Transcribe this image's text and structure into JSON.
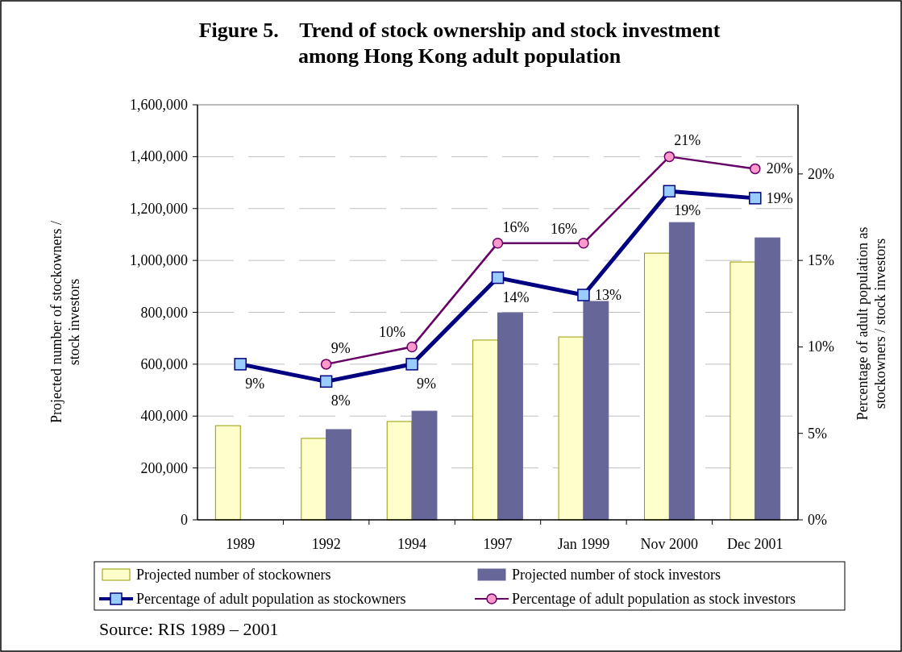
{
  "chart_data": {
    "type": "bar",
    "title": "Figure 5.    Trend of stock ownership and stock investment\namong Hong Kong adult population",
    "ylabel": "Projected number of stockowners /\nstock investors",
    "y2label": "Percentage of adult population as\nstockowners / stock investors",
    "categories": [
      "1989",
      "1992",
      "1994",
      "1997",
      "Jan 1999",
      "Nov 2000",
      "Dec 2001"
    ],
    "series": [
      {
        "name": "Projected number of stockowners",
        "color": "#ffffcc",
        "values": [
          363000,
          314000,
          379000,
          693000,
          705000,
          1028000,
          994000
        ]
      },
      {
        "name": "Projected number of stock investors",
        "color": "#666699",
        "values": [
          null,
          348000,
          419000,
          798000,
          842000,
          1146000,
          1087000
        ]
      },
      {
        "name": "Percentage of adult population as stockowners",
        "type": "line",
        "axis": "y2",
        "color": "#000080",
        "marker": "square",
        "values": [
          9.0,
          8.0,
          9.0,
          14.0,
          13.0,
          19.0,
          18.6
        ],
        "value_labels": [
          "9%",
          "8%",
          "9%",
          "14%",
          "13%",
          "19%",
          "19%"
        ]
      },
      {
        "name": "Percentage of adult population as stock investors",
        "type": "line",
        "axis": "y2",
        "color": "#660066",
        "marker": "circle",
        "values": [
          null,
          9.0,
          10.0,
          16.0,
          16.0,
          21.0,
          20.3
        ],
        "value_labels": [
          null,
          "9%",
          "10%",
          "16%",
          "16%",
          "21%",
          "20%"
        ]
      }
    ],
    "ylim": [
      0,
      1600000
    ],
    "yticks": [
      {
        "value": 0,
        "label": "0"
      },
      {
        "value": 200000,
        "label": "200,000"
      },
      {
        "value": 400000,
        "label": "400,000"
      },
      {
        "value": 600000,
        "label": "600,000"
      },
      {
        "value": 800000,
        "label": "800,000"
      },
      {
        "value": 1000000,
        "label": "1,000,000"
      },
      {
        "value": 1200000,
        "label": "1,200,000"
      },
      {
        "value": 1400000,
        "label": "1,400,000"
      },
      {
        "value": 1600000,
        "label": "1,600,000"
      }
    ],
    "y2lim": [
      0,
      24
    ],
    "y2ticks": [
      {
        "value": 0,
        "label": "0%"
      },
      {
        "value": 5,
        "label": "5%"
      },
      {
        "value": 10,
        "label": "10%"
      },
      {
        "value": 15,
        "label": "15%"
      },
      {
        "value": 20,
        "label": "20%"
      }
    ],
    "grid": "y",
    "legend": "bottom",
    "annotations": [
      "Source: RIS 1989 – 2001"
    ]
  }
}
